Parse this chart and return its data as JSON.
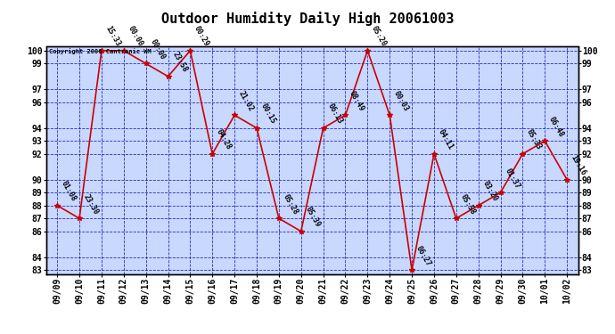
{
  "title": "Outdoor Humidity Daily High 20061003",
  "copyright": "Copyright 2006 Cantronic WM",
  "x_labels": [
    "09/09",
    "09/10",
    "09/11",
    "09/12",
    "09/13",
    "09/14",
    "09/15",
    "09/16",
    "09/17",
    "09/18",
    "09/19",
    "09/20",
    "09/21",
    "09/22",
    "09/23",
    "09/24",
    "09/25",
    "09/26",
    "09/27",
    "09/28",
    "09/29",
    "09/30",
    "10/01",
    "10/02"
  ],
  "y_values": [
    88,
    87,
    100,
    100,
    99,
    98,
    100,
    92,
    95,
    94,
    87,
    86,
    94,
    95,
    100,
    95,
    83,
    92,
    87,
    88,
    89,
    92,
    93,
    90
  ],
  "point_labels": [
    "01:08",
    "23:30",
    "15:33",
    "00:00",
    "00:00",
    "23:58",
    "00:29",
    "04:28",
    "21:02",
    "00:15",
    "05:28",
    "05:39",
    "06:13",
    "08:49",
    "05:20",
    "00:03",
    "06:27",
    "04:11",
    "05:58",
    "03:20",
    "01:37",
    "05:33",
    "06:48",
    "19:16"
  ],
  "ylim_min": 83,
  "ylim_max": 100,
  "yticks": [
    83,
    84,
    86,
    87,
    88,
    89,
    90,
    92,
    93,
    94,
    96,
    97,
    99,
    100
  ],
  "line_color": "#CC0000",
  "marker_color": "#CC0000",
  "plot_bg_color": "#C8D8FF",
  "grid_color": "#0000AA",
  "title_fontsize": 11,
  "tick_fontsize": 7,
  "point_label_fontsize": 6
}
